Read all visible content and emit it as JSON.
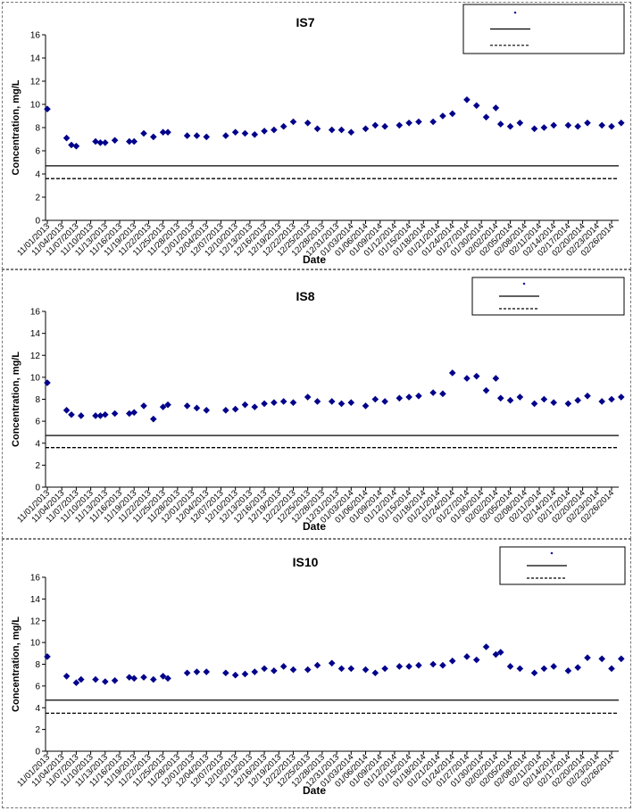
{
  "chart_data": [
    {
      "type": "scatter",
      "title": "IS7",
      "xlabel": "Date",
      "ylabel": "Concentration, mg/L",
      "ylim": [
        0,
        16
      ],
      "yticks": [
        0,
        2,
        4,
        6,
        8,
        10,
        12,
        14,
        16
      ],
      "x_tick_labels": [
        "11/01/2013",
        "11/04/2013",
        "11/07/2013",
        "11/10/2013",
        "11/13/2013",
        "11/16/2013",
        "11/19/2013",
        "11/22/2013",
        "11/25/2013",
        "11/28/2013",
        "12/01/2013",
        "12/04/2013",
        "12/07/2013",
        "12/10/2013",
        "12/13/2013",
        "12/16/2013",
        "12/19/2013",
        "12/22/2013",
        "12/25/2013",
        "12/28/2013",
        "12/31/2013",
        "01/03/2014",
        "01/06/2014",
        "01/09/2014",
        "01/12/2014",
        "01/15/2014",
        "01/18/2014",
        "01/21/2014",
        "01/24/2014",
        "01/27/2014",
        "01/30/2014",
        "02/02/2014",
        "02/05/2014",
        "02/08/2014",
        "02/11/2014",
        "02/14/2014",
        "02/17/2014",
        "02/20/2014",
        "02/23/2014",
        "02/26/2014"
      ],
      "legend": {
        "placement": "top-right",
        "entries": []
      },
      "reference_lines": [
        {
          "value": 4.7,
          "style": "solid"
        },
        {
          "value": 3.6,
          "style": "dashed"
        }
      ],
      "series": [
        {
          "marker": "diamond",
          "color": "#00008b",
          "x": [
            "11/01/2013",
            "11/05/2013",
            "11/06/2013",
            "11/07/2013",
            "11/11/2013",
            "11/12/2013",
            "11/13/2013",
            "11/15/2013",
            "11/18/2013",
            "11/19/2013",
            "11/21/2013",
            "11/23/2013",
            "11/25/2013",
            "11/26/2013",
            "11/30/2013",
            "12/02/2013",
            "12/04/2013",
            "12/08/2013",
            "12/10/2013",
            "12/12/2013",
            "12/14/2013",
            "12/16/2013",
            "12/18/2013",
            "12/20/2013",
            "12/22/2013",
            "12/25/2013",
            "12/27/2013",
            "12/30/2013",
            "01/01/2014",
            "01/03/2014",
            "01/06/2014",
            "01/08/2014",
            "01/10/2014",
            "01/13/2014",
            "01/15/2014",
            "01/17/2014",
            "01/20/2014",
            "01/22/2014",
            "01/24/2014",
            "01/27/2014",
            "01/29/2014",
            "01/31/2014",
            "02/02/2014",
            "02/03/2014",
            "02/05/2014",
            "02/07/2014",
            "02/10/2014",
            "02/12/2014",
            "02/14/2014",
            "02/17/2014",
            "02/19/2014",
            "02/21/2014",
            "02/24/2014",
            "02/26/2014",
            "02/28/2014"
          ],
          "y": [
            9.6,
            7.1,
            6.5,
            6.4,
            6.8,
            6.7,
            6.7,
            6.9,
            6.8,
            6.8,
            7.5,
            7.2,
            7.6,
            7.6,
            7.3,
            7.3,
            7.2,
            7.3,
            7.6,
            7.5,
            7.4,
            7.7,
            7.8,
            8.1,
            8.5,
            8.4,
            7.9,
            7.8,
            7.8,
            7.6,
            7.9,
            8.2,
            8.1,
            8.2,
            8.4,
            8.5,
            8.5,
            9.0,
            9.2,
            10.4,
            9.9,
            8.9,
            9.7,
            8.3,
            8.1,
            8.4,
            7.9,
            8.0,
            8.2,
            8.2,
            8.1,
            8.4,
            8.2,
            8.1,
            8.4
          ]
        }
      ]
    },
    {
      "type": "scatter",
      "title": "IS8",
      "xlabel": "Date",
      "ylabel": "Concentration, mg/L",
      "ylim": [
        0,
        16
      ],
      "yticks": [
        0,
        2,
        4,
        6,
        8,
        10,
        12,
        14,
        16
      ],
      "x_tick_labels": [
        "11/01/2013",
        "11/04/2013",
        "11/07/2013",
        "11/10/2013",
        "11/13/2013",
        "11/16/2013",
        "11/19/2013",
        "11/22/2013",
        "11/25/2013",
        "11/28/2013",
        "12/01/2013",
        "12/04/2013",
        "12/07/2013",
        "12/10/2013",
        "12/13/2013",
        "12/16/2013",
        "12/19/2013",
        "12/22/2013",
        "12/25/2013",
        "12/28/2013",
        "12/31/2013",
        "01/03/2014",
        "01/06/2014",
        "01/09/2014",
        "01/12/2014",
        "01/15/2014",
        "01/18/2014",
        "01/21/2014",
        "01/24/2014",
        "01/27/2014",
        "01/30/2014",
        "02/02/2014",
        "02/05/2014",
        "02/08/2014",
        "02/11/2014",
        "02/14/2014",
        "02/17/2014",
        "02/20/2014",
        "02/23/2014",
        "02/26/2014"
      ],
      "legend": {
        "placement": "top-right",
        "entries": []
      },
      "reference_lines": [
        {
          "value": 4.7,
          "style": "solid"
        },
        {
          "value": 3.6,
          "style": "dashed"
        }
      ],
      "series": [
        {
          "marker": "diamond",
          "color": "#00008b",
          "x": [
            "11/01/2013",
            "11/05/2013",
            "11/06/2013",
            "11/08/2013",
            "11/11/2013",
            "11/12/2013",
            "11/13/2013",
            "11/15/2013",
            "11/18/2013",
            "11/19/2013",
            "11/21/2013",
            "11/23/2013",
            "11/25/2013",
            "11/26/2013",
            "11/30/2013",
            "12/02/2013",
            "12/04/2013",
            "12/08/2013",
            "12/10/2013",
            "12/12/2013",
            "12/14/2013",
            "12/16/2013",
            "12/18/2013",
            "12/20/2013",
            "12/22/2013",
            "12/25/2013",
            "12/27/2013",
            "12/30/2013",
            "01/01/2014",
            "01/03/2014",
            "01/06/2014",
            "01/08/2014",
            "01/10/2014",
            "01/13/2014",
            "01/15/2014",
            "01/17/2014",
            "01/20/2014",
            "01/22/2014",
            "01/24/2014",
            "01/27/2014",
            "01/29/2014",
            "01/31/2014",
            "02/02/2014",
            "02/03/2014",
            "02/05/2014",
            "02/07/2014",
            "02/10/2014",
            "02/12/2014",
            "02/14/2014",
            "02/17/2014",
            "02/19/2014",
            "02/21/2014",
            "02/24/2014",
            "02/26/2014",
            "02/28/2014"
          ],
          "y": [
            9.5,
            7.0,
            6.6,
            6.5,
            6.5,
            6.5,
            6.6,
            6.7,
            6.7,
            6.8,
            7.4,
            6.2,
            7.3,
            7.5,
            7.4,
            7.2,
            7.0,
            7.0,
            7.1,
            7.5,
            7.3,
            7.6,
            7.7,
            7.8,
            7.7,
            8.2,
            7.8,
            7.8,
            7.6,
            7.7,
            7.4,
            8.0,
            7.8,
            8.1,
            8.2,
            8.3,
            8.6,
            8.5,
            10.4,
            9.9,
            10.1,
            8.8,
            9.9,
            8.1,
            7.9,
            8.2,
            7.6,
            8.0,
            7.7,
            7.6,
            7.9,
            8.3,
            7.8,
            8.0,
            8.2
          ]
        }
      ]
    },
    {
      "type": "scatter",
      "title": "IS10",
      "xlabel": "Date",
      "ylabel": "Concentration, mg/L",
      "ylim": [
        0,
        16
      ],
      "yticks": [
        0,
        2,
        4,
        6,
        8,
        10,
        12,
        14,
        16
      ],
      "x_tick_labels": [
        "11/01/2013",
        "11/04/2013",
        "11/07/2013",
        "11/10/2013",
        "11/13/2013",
        "11/16/2013",
        "11/19/2013",
        "11/22/2013",
        "11/25/2013",
        "11/28/2013",
        "12/01/2013",
        "12/04/2013",
        "12/07/2013",
        "12/10/2013",
        "12/13/2013",
        "12/16/2013",
        "12/19/2013",
        "12/22/2013",
        "12/25/2013",
        "12/28/2013",
        "12/31/2013",
        "01/03/2014",
        "01/06/2014",
        "01/09/2014",
        "01/12/2014",
        "01/15/2014",
        "01/18/2014",
        "01/21/2014",
        "01/24/2014",
        "01/27/2014",
        "01/30/2014",
        "02/02/2014",
        "02/05/2014",
        "02/08/2014",
        "02/11/2014",
        "02/14/2014",
        "02/17/2014",
        "02/20/2014",
        "02/23/2014",
        "02/26/2014"
      ],
      "legend": {
        "placement": "top-right",
        "entries": []
      },
      "reference_lines": [
        {
          "value": 4.7,
          "style": "solid"
        },
        {
          "value": 3.5,
          "style": "dashed"
        }
      ],
      "series": [
        {
          "marker": "diamond",
          "color": "#00008b",
          "x": [
            "11/01/2013",
            "11/05/2013",
            "11/07/2013",
            "11/08/2013",
            "11/11/2013",
            "11/13/2013",
            "11/15/2013",
            "11/18/2013",
            "11/19/2013",
            "11/21/2013",
            "11/23/2013",
            "11/25/2013",
            "11/26/2013",
            "11/30/2013",
            "12/02/2013",
            "12/04/2013",
            "12/08/2013",
            "12/10/2013",
            "12/12/2013",
            "12/14/2013",
            "12/16/2013",
            "12/18/2013",
            "12/20/2013",
            "12/22/2013",
            "12/25/2013",
            "12/27/2013",
            "12/30/2013",
            "01/01/2014",
            "01/03/2014",
            "01/06/2014",
            "01/08/2014",
            "01/10/2014",
            "01/13/2014",
            "01/15/2014",
            "01/17/2014",
            "01/20/2014",
            "01/22/2014",
            "01/24/2014",
            "01/27/2014",
            "01/29/2014",
            "01/31/2014",
            "02/02/2014",
            "02/03/2014",
            "02/05/2014",
            "02/07/2014",
            "02/10/2014",
            "02/12/2014",
            "02/14/2014",
            "02/17/2014",
            "02/19/2014",
            "02/21/2014",
            "02/24/2014",
            "02/26/2014",
            "02/28/2014"
          ],
          "y": [
            8.7,
            6.9,
            6.3,
            6.6,
            6.6,
            6.4,
            6.5,
            6.8,
            6.7,
            6.8,
            6.6,
            6.9,
            6.7,
            7.2,
            7.3,
            7.3,
            7.2,
            7.0,
            7.1,
            7.3,
            7.6,
            7.4,
            7.8,
            7.5,
            7.5,
            7.9,
            8.1,
            7.6,
            7.6,
            7.5,
            7.2,
            7.6,
            7.8,
            7.8,
            7.9,
            8.0,
            7.9,
            8.3,
            8.7,
            8.4,
            9.6,
            8.9,
            9.1,
            7.8,
            7.6,
            7.2,
            7.6,
            7.8,
            7.4,
            7.7,
            8.6,
            8.5,
            7.6,
            8.5
          ]
        }
      ]
    }
  ]
}
